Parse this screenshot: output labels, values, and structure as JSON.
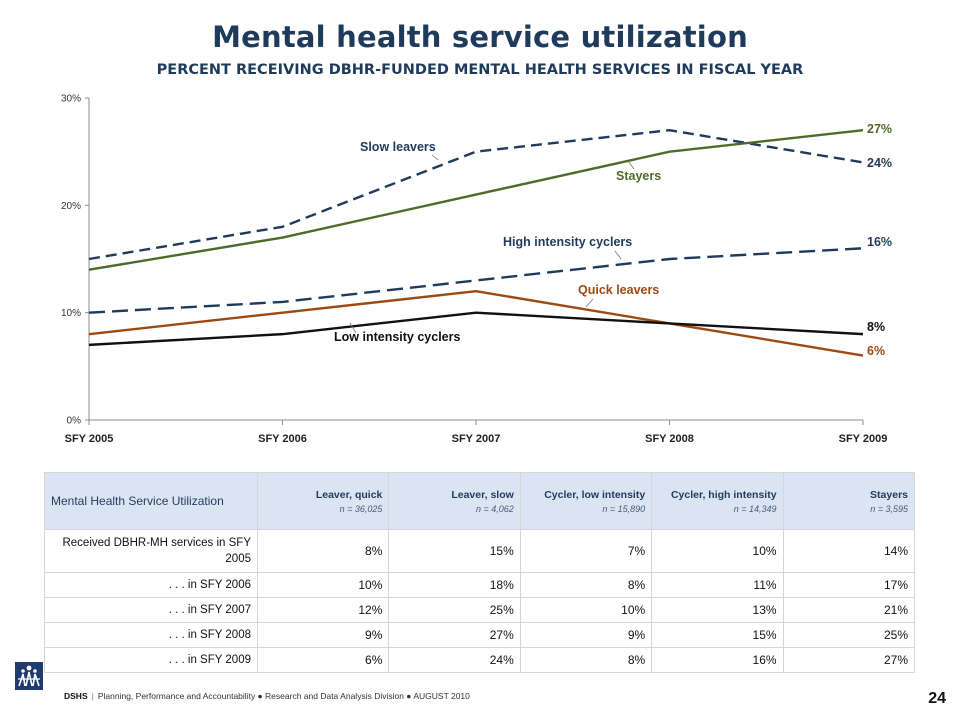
{
  "page": {
    "title": "Mental health service utilization",
    "subtitle": "PERCENT RECEIVING DBHR-FUNDED MENTAL HEALTH SERVICES IN FISCAL YEAR"
  },
  "chart_data": {
    "type": "line",
    "x": [
      "SFY 2005",
      "SFY 2006",
      "SFY 2007",
      "SFY 2008",
      "SFY 2009"
    ],
    "ylim": [
      0,
      30
    ],
    "yticks": [
      "0%",
      "10%",
      "20%",
      "30%"
    ],
    "grid": false,
    "legend": "inline labels",
    "series": [
      {
        "name": "Slow leavers",
        "values": [
          15,
          18,
          25,
          27,
          24
        ],
        "color": "#1f3b5c",
        "dash": "dashed",
        "end_label": "24%"
      },
      {
        "name": "Stayers",
        "values": [
          14,
          17,
          21,
          25,
          27
        ],
        "color": "#4f6b2a",
        "dash": "solid",
        "end_label": "27%"
      },
      {
        "name": "High intensity cyclers",
        "values": [
          10,
          11,
          13,
          15,
          16
        ],
        "color": "#1f3b5c",
        "dash": "longdash",
        "end_label": "16%"
      },
      {
        "name": "Quick leavers",
        "values": [
          8,
          10,
          12,
          9,
          6
        ],
        "color": "#9c4a12",
        "dash": "solid",
        "end_label": "6%"
      },
      {
        "name": "Low intensity cyclers",
        "values": [
          7,
          8,
          10,
          9,
          8
        ],
        "color": "#111111",
        "dash": "solid",
        "end_label": "8%"
      }
    ]
  },
  "table": {
    "corner": "Mental Health Service Utilization",
    "columns": [
      {
        "label": "Leaver, quick",
        "n": "n = 36,025"
      },
      {
        "label": "Leaver, slow",
        "n": "n = 4,062"
      },
      {
        "label": "Cycler, low intensity",
        "n": "n = 15,890"
      },
      {
        "label": "Cycler, high intensity",
        "n": "n = 14,349"
      },
      {
        "label": "Stayers",
        "n": "n = 3,595"
      }
    ],
    "rows": [
      {
        "label": "Received DBHR-MH services in SFY 2005",
        "values": [
          "8%",
          "15%",
          "7%",
          "10%",
          "14%"
        ]
      },
      {
        "label": ". . . in SFY 2006",
        "values": [
          "10%",
          "18%",
          "8%",
          "11%",
          "17%"
        ]
      },
      {
        "label": ". . . in SFY 2007",
        "values": [
          "12%",
          "25%",
          "10%",
          "13%",
          "21%"
        ]
      },
      {
        "label": ". . . in SFY 2008",
        "values": [
          "9%",
          "27%",
          "9%",
          "15%",
          "25%"
        ]
      },
      {
        "label": ". . . in SFY 2009",
        "values": [
          "6%",
          "24%",
          "8%",
          "16%",
          "27%"
        ]
      }
    ]
  },
  "footer": {
    "org": "DSHS",
    "text": "Planning, Performance and Accountability ● Research and Data Analysis Division ● AUGUST 2010",
    "page_number": "24",
    "logo_icon": "dshs-logo-icon"
  }
}
